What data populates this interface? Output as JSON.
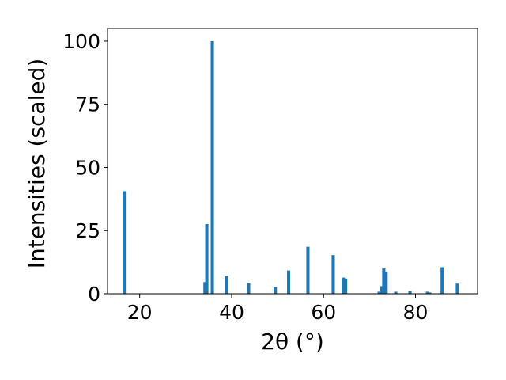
{
  "chart_data": {
    "type": "bar",
    "title": "",
    "xlabel": "2θ (°)",
    "ylabel": "Intensities (scaled)",
    "xlim": [
      13,
      93.5
    ],
    "ylim": [
      0,
      105
    ],
    "xticks": [
      20,
      40,
      60,
      80
    ],
    "yticks": [
      0,
      25,
      50,
      75,
      100
    ],
    "grid": false,
    "legend": "none",
    "bar_color": "#1f77b4",
    "bar_width": 0.7,
    "series": [
      {
        "x": [
          16.8,
          34.2,
          34.6,
          35.8,
          38.9,
          43.7,
          49.5,
          52.4,
          56.6,
          62.1,
          64.3,
          64.8,
          72.1,
          72.7,
          73.1,
          73.6,
          75.7,
          78.8,
          82.6,
          83.1,
          85.8,
          89.1
        ],
        "y": [
          40.6,
          4.6,
          27.6,
          100.0,
          6.9,
          4.1,
          2.6,
          9.2,
          18.6,
          15.3,
          6.4,
          6.0,
          0.8,
          3.0,
          10.0,
          8.6,
          0.8,
          1.0,
          0.8,
          0.5,
          10.5,
          4.0
        ]
      }
    ]
  }
}
